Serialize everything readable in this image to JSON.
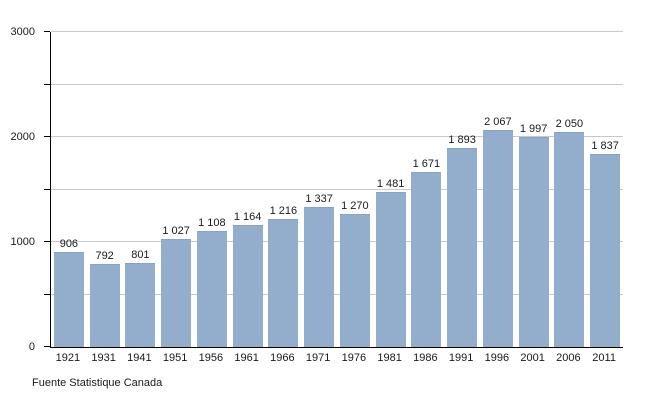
{
  "chart_data": {
    "type": "bar",
    "categories": [
      "1921",
      "1931",
      "1941",
      "1951",
      "1956",
      "1961",
      "1966",
      "1971",
      "1976",
      "1981",
      "1986",
      "1991",
      "1996",
      "2001",
      "2006",
      "2011"
    ],
    "values": [
      906,
      792,
      801,
      1027,
      1108,
      1164,
      1216,
      1337,
      1270,
      1481,
      1671,
      1893,
      2067,
      1997,
      2050,
      1837
    ],
    "value_labels": [
      "906",
      "792",
      "801",
      "1 027",
      "1 108",
      "1 164",
      "1 216",
      "1 337",
      "1 270",
      "1 481",
      "1 671",
      "1 893",
      "2 067",
      "1 997",
      "2 050",
      "1 837"
    ],
    "xlabel": "",
    "ylabel": "",
    "ylim": [
      0,
      3000
    ],
    "grid_step": 500,
    "grid": true,
    "legend": "none",
    "y_ticks": [
      {
        "value": 0,
        "label": "0"
      },
      {
        "value": 1000,
        "label": "1000"
      },
      {
        "value": 2000,
        "label": "2000"
      },
      {
        "value": 3000,
        "label": "3000"
      }
    ]
  },
  "footer": {
    "source_text": "Fuente Statistique Canada"
  },
  "colors": {
    "bar": "#93AECC",
    "bar_edge": "#89A3C2",
    "grid": "#C8C8C8",
    "axis": "#000000",
    "text": "#1A1A1A"
  }
}
